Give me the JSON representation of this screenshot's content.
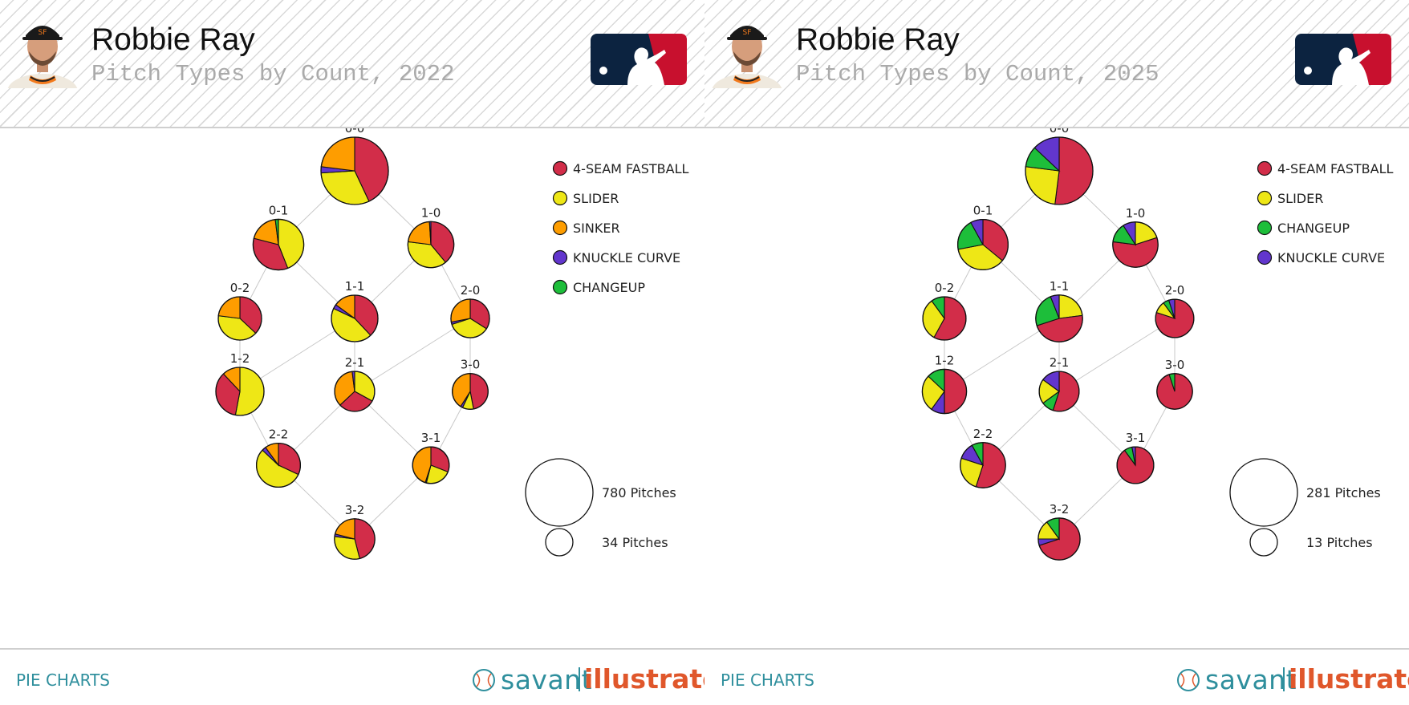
{
  "chart_data": [
    {
      "type": "pie",
      "player": "Robbie Ray",
      "title": "Pitch Types by Count, 2022",
      "legend": [
        "4-SEAM FASTBALL",
        "SLIDER",
        "SINKER",
        "KNUCKLE CURVE",
        "CHANGEUP"
      ],
      "colors": {
        "4-SEAM FASTBALL": "#d22d49",
        "SLIDER": "#eee716",
        "SINKER": "#fe9d00",
        "KNUCKLE CURVE": "#6236cd",
        "CHANGEUP": "#1dbe3a"
      },
      "size_legend": [
        {
          "label": "780 Pitches",
          "pitches": 780
        },
        {
          "label": "34 Pitches",
          "pitches": 34
        }
      ],
      "counts": [
        {
          "count": "0-0",
          "pitches": 780,
          "mix": {
            "4-SEAM FASTBALL": 0.43,
            "SLIDER": 0.31,
            "KNUCKLE CURVE": 0.03,
            "SINKER": 0.23
          }
        },
        {
          "count": "0-1",
          "pitches": 350,
          "mix": {
            "SLIDER": 0.44,
            "4-SEAM FASTBALL": 0.35,
            "SINKER": 0.19,
            "CHANGEUP": 0.02
          }
        },
        {
          "count": "1-0",
          "pitches": 260,
          "mix": {
            "4-SEAM FASTBALL": 0.39,
            "SLIDER": 0.38,
            "SINKER": 0.22,
            "KNUCKLE CURVE": 0.01
          }
        },
        {
          "count": "0-2",
          "pitches": 215,
          "mix": {
            "4-SEAM FASTBALL": 0.37,
            "SLIDER": 0.4,
            "SINKER": 0.23
          }
        },
        {
          "count": "1-1",
          "pitches": 270,
          "mix": {
            "4-SEAM FASTBALL": 0.38,
            "SLIDER": 0.44,
            "KNUCKLE CURVE": 0.03,
            "SINKER": 0.15
          }
        },
        {
          "count": "2-0",
          "pitches": 145,
          "mix": {
            "4-SEAM FASTBALL": 0.34,
            "SLIDER": 0.36,
            "KNUCKLE CURVE": 0.02,
            "SINKER": 0.28
          }
        },
        {
          "count": "1-2",
          "pitches": 300,
          "mix": {
            "SLIDER": 0.53,
            "4-SEAM FASTBALL": 0.35,
            "SINKER": 0.12
          }
        },
        {
          "count": "2-1",
          "pitches": 165,
          "mix": {
            "SLIDER": 0.33,
            "4-SEAM FASTBALL": 0.3,
            "SINKER": 0.35,
            "KNUCKLE CURVE": 0.02
          }
        },
        {
          "count": "3-0",
          "pitches": 110,
          "mix": {
            "4-SEAM FASTBALL": 0.47,
            "SLIDER": 0.1,
            "KNUCKLE CURVE": 0.02,
            "SINKER": 0.41
          }
        },
        {
          "count": "2-2",
          "pitches": 225,
          "mix": {
            "4-SEAM FASTBALL": 0.32,
            "SLIDER": 0.55,
            "KNUCKLE CURVE": 0.03,
            "SINKER": 0.1
          }
        },
        {
          "count": "3-1",
          "pitches": 120,
          "mix": {
            "4-SEAM FASTBALL": 0.31,
            "SLIDER": 0.23,
            "KNUCKLE CURVE": 0.01,
            "SINKER": 0.45
          }
        },
        {
          "count": "3-2",
          "pitches": 170,
          "mix": {
            "4-SEAM FASTBALL": 0.46,
            "SLIDER": 0.31,
            "KNUCKLE CURVE": 0.02,
            "SINKER": 0.21
          }
        }
      ]
    },
    {
      "type": "pie",
      "player": "Robbie Ray",
      "title": "Pitch Types by Count, 2025",
      "legend": [
        "4-SEAM FASTBALL",
        "SLIDER",
        "CHANGEUP",
        "KNUCKLE CURVE"
      ],
      "colors": {
        "4-SEAM FASTBALL": "#d22d49",
        "SLIDER": "#eee716",
        "CHANGEUP": "#1dbe3a",
        "KNUCKLE CURVE": "#6236cd"
      },
      "size_legend": [
        {
          "label": "281 Pitches",
          "pitches": 281
        },
        {
          "label": "13 Pitches",
          "pitches": 13
        }
      ],
      "counts": [
        {
          "count": "0-0",
          "pitches": 281,
          "mix": {
            "4-SEAM FASTBALL": 0.52,
            "SLIDER": 0.25,
            "CHANGEUP": 0.1,
            "KNUCKLE CURVE": 0.13
          }
        },
        {
          "count": "0-1",
          "pitches": 125,
          "mix": {
            "4-SEAM FASTBALL": 0.36,
            "SLIDER": 0.36,
            "CHANGEUP": 0.2,
            "KNUCKLE CURVE": 0.08
          }
        },
        {
          "count": "1-0",
          "pitches": 90,
          "mix": {
            "SLIDER": 0.2,
            "4-SEAM FASTBALL": 0.57,
            "CHANGEUP": 0.14,
            "KNUCKLE CURVE": 0.09
          }
        },
        {
          "count": "0-2",
          "pitches": 78,
          "mix": {
            "4-SEAM FASTBALL": 0.58,
            "SLIDER": 0.32,
            "CHANGEUP": 0.1
          }
        },
        {
          "count": "1-1",
          "pitches": 100,
          "mix": {
            "SLIDER": 0.23,
            "4-SEAM FASTBALL": 0.47,
            "CHANGEUP": 0.24,
            "KNUCKLE CURVE": 0.06
          }
        },
        {
          "count": "2-0",
          "pitches": 52,
          "mix": {
            "4-SEAM FASTBALL": 0.8,
            "SLIDER": 0.1,
            "CHANGEUP": 0.05,
            "KNUCKLE CURVE": 0.05
          }
        },
        {
          "count": "1-2",
          "pitches": 84,
          "mix": {
            "4-SEAM FASTBALL": 0.5,
            "KNUCKLE CURVE": 0.1,
            "SLIDER": 0.27,
            "CHANGEUP": 0.13
          }
        },
        {
          "count": "2-1",
          "pitches": 60,
          "mix": {
            "4-SEAM FASTBALL": 0.55,
            "CHANGEUP": 0.1,
            "SLIDER": 0.2,
            "KNUCKLE CURVE": 0.15
          }
        },
        {
          "count": "3-0",
          "pitches": 40,
          "mix": {
            "4-SEAM FASTBALL": 0.95,
            "CHANGEUP": 0.05
          }
        },
        {
          "count": "2-2",
          "pitches": 90,
          "mix": {
            "4-SEAM FASTBALL": 0.55,
            "SLIDER": 0.25,
            "KNUCKLE CURVE": 0.12,
            "CHANGEUP": 0.08
          }
        },
        {
          "count": "3-1",
          "pitches": 45,
          "mix": {
            "4-SEAM FASTBALL": 0.9,
            "CHANGEUP": 0.07,
            "KNUCKLE CURVE": 0.03
          }
        },
        {
          "count": "3-2",
          "pitches": 70,
          "mix": {
            "4-SEAM FASTBALL": 0.7,
            "KNUCKLE CURVE": 0.05,
            "SLIDER": 0.15,
            "CHANGEUP": 0.1
          }
        }
      ]
    }
  ],
  "footer": {
    "link_label": "PIE CHARTS",
    "brand_a": "savant",
    "brand_b": "illustrator"
  }
}
